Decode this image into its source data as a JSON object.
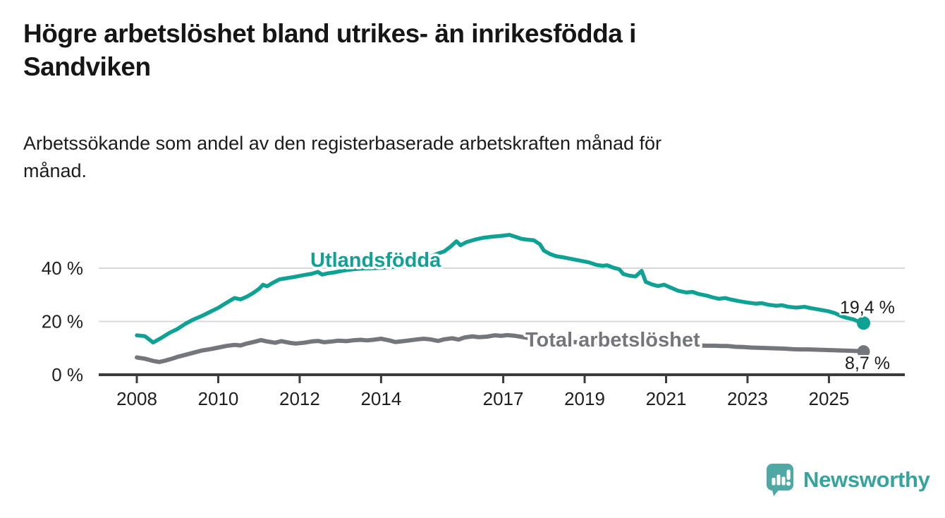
{
  "header": {
    "title_lines": [
      "Högre arbetslöshet bland utrikes- än inrikesfödda i",
      "Sandviken"
    ],
    "subtitle_lines": [
      "Arbetssökande som andel av den registerbaserade arbetskraften månad för",
      "månad."
    ]
  },
  "footer": {
    "brand": "Newsworthy"
  },
  "colors": {
    "series_foreign": "#0fa294",
    "series_total": "#75757c",
    "axis": "#3c3c3c",
    "gridline": "#d8d8d8",
    "text": "#1a1a1a",
    "logo_icon": "#4fa8a3",
    "logo_text": "#35a49d"
  },
  "chart_data": {
    "type": "line",
    "title": "Högre arbetslöshet bland utrikes- än inrikesfödda i Sandviken",
    "subtitle": "Arbetssökande som andel av den registerbaserade arbetskraften månad för månad.",
    "x_unit": "year",
    "y_unit": "percent",
    "xlim": [
      2007.9,
      2026.3
    ],
    "ylim": [
      0,
      55
    ],
    "grid": "horizontal",
    "gridlines": [
      20,
      40
    ],
    "legend_position": "inline-labels",
    "yticks": [
      {
        "value": 0,
        "label": "0 %"
      },
      {
        "value": 20,
        "label": "20 %"
      },
      {
        "value": 40,
        "label": "40 %"
      }
    ],
    "xticks": [
      {
        "value": 2008,
        "label": "2008"
      },
      {
        "value": 2010,
        "label": "2010"
      },
      {
        "value": 2012,
        "label": "2012"
      },
      {
        "value": 2014,
        "label": "2014"
      },
      {
        "value": 2017,
        "label": "2017"
      },
      {
        "value": 2019,
        "label": "2019"
      },
      {
        "value": 2021,
        "label": "2021"
      },
      {
        "value": 2023,
        "label": "2023"
      },
      {
        "value": 2025,
        "label": "2025"
      }
    ],
    "series": [
      {
        "name": "Utlandsfödda",
        "color": "#0fa294",
        "end_label": "19,4 %",
        "end_value": 19.4,
        "x": [
          2008.0,
          2008.2,
          2008.4,
          2008.6,
          2008.8,
          2009.0,
          2009.2,
          2009.4,
          2009.6,
          2009.8,
          2010.0,
          2010.2,
          2010.4,
          2010.55,
          2010.7,
          2010.85,
          2011.0,
          2011.1,
          2011.2,
          2011.35,
          2011.5,
          2011.7,
          2011.9,
          2012.1,
          2012.3,
          2012.45,
          2012.55,
          2012.7,
          2012.85,
          2013.0,
          2013.2,
          2013.4,
          2013.6,
          2013.8,
          2014.0,
          2014.2,
          2014.4,
          2014.6,
          2014.8,
          2015.0,
          2015.2,
          2015.4,
          2015.55,
          2015.7,
          2015.85,
          2015.95,
          2016.1,
          2016.3,
          2016.5,
          2016.7,
          2016.85,
          2017.0,
          2017.15,
          2017.3,
          2017.45,
          2017.6,
          2017.75,
          2017.9,
          2018.0,
          2018.15,
          2018.3,
          2018.5,
          2018.7,
          2018.9,
          2019.1,
          2019.3,
          2019.45,
          2019.55,
          2019.7,
          2019.85,
          2019.95,
          2020.1,
          2020.25,
          2020.4,
          2020.5,
          2020.65,
          2020.8,
          2020.95,
          2021.1,
          2021.3,
          2021.5,
          2021.65,
          2021.8,
          2022.0,
          2022.15,
          2022.3,
          2022.45,
          2022.6,
          2022.8,
          2023.0,
          2023.2,
          2023.35,
          2023.5,
          2023.7,
          2023.85,
          2024.0,
          2024.2,
          2024.4,
          2024.55,
          2024.7,
          2024.85,
          2025.0,
          2025.15,
          2025.3,
          2025.45,
          2025.6,
          2025.75,
          2025.85
        ],
        "values": [
          14.8,
          14.5,
          12.1,
          13.8,
          15.7,
          17.2,
          19.2,
          20.8,
          22.1,
          23.6,
          25.1,
          27.0,
          28.8,
          28.3,
          29.3,
          30.6,
          32.2,
          33.8,
          33.2,
          34.6,
          35.8,
          36.3,
          36.8,
          37.4,
          37.9,
          38.6,
          37.6,
          38.1,
          38.4,
          38.9,
          39.4,
          39.7,
          39.9,
          40.0,
          40.1,
          40.3,
          40.6,
          41.4,
          42.3,
          43.2,
          44.3,
          45.5,
          46.3,
          48.0,
          50.1,
          48.6,
          49.8,
          50.7,
          51.4,
          51.8,
          52.0,
          52.2,
          52.5,
          51.8,
          51.0,
          50.7,
          50.5,
          49.0,
          46.6,
          45.3,
          44.5,
          44.0,
          43.4,
          42.8,
          42.2,
          41.2,
          40.9,
          41.1,
          40.2,
          39.6,
          37.8,
          37.2,
          36.9,
          39.0,
          34.9,
          33.9,
          33.3,
          33.8,
          32.8,
          31.5,
          30.9,
          31.1,
          30.3,
          29.7,
          29.0,
          28.5,
          28.8,
          28.2,
          27.6,
          27.1,
          26.7,
          26.9,
          26.3,
          25.9,
          26.1,
          25.5,
          25.2,
          25.5,
          25.0,
          24.6,
          24.2,
          23.8,
          23.1,
          22.0,
          21.3,
          20.8,
          19.8,
          19.4
        ]
      },
      {
        "name": "Total arbetslöshet",
        "color": "#75757c",
        "end_label": "8,7 %",
        "end_value": 8.7,
        "x": [
          2008.0,
          2008.2,
          2008.4,
          2008.55,
          2008.7,
          2008.9,
          2009.0,
          2009.2,
          2009.4,
          2009.6,
          2009.8,
          2010.0,
          2010.2,
          2010.4,
          2010.55,
          2010.7,
          2010.9,
          2011.05,
          2011.2,
          2011.4,
          2011.55,
          2011.75,
          2011.9,
          2012.1,
          2012.3,
          2012.45,
          2012.6,
          2012.8,
          2012.95,
          2013.15,
          2013.3,
          2013.5,
          2013.65,
          2013.8,
          2014.0,
          2014.2,
          2014.35,
          2014.55,
          2014.7,
          2014.9,
          2015.05,
          2015.2,
          2015.4,
          2015.55,
          2015.75,
          2015.9,
          2016.05,
          2016.25,
          2016.4,
          2016.6,
          2016.8,
          2016.95,
          2017.1,
          2017.3,
          2017.5,
          2017.7,
          2017.9,
          2018.1,
          2018.3,
          2018.5,
          2018.7,
          2018.9,
          2019.1,
          2019.3,
          2019.5,
          2019.7,
          2019.9,
          2020.1,
          2020.3,
          2020.45,
          2020.6,
          2020.8,
          2021.0,
          2021.2,
          2021.4,
          2021.6,
          2021.8,
          2022.0,
          2022.2,
          2022.35,
          2022.5,
          2022.7,
          2022.9,
          2023.1,
          2023.3,
          2023.5,
          2023.7,
          2023.9,
          2024.1,
          2024.3,
          2024.5,
          2024.7,
          2024.9,
          2025.1,
          2025.3,
          2025.5,
          2025.7,
          2025.85
        ],
        "values": [
          6.5,
          6.0,
          5.2,
          4.8,
          5.3,
          6.2,
          6.7,
          7.5,
          8.3,
          9.1,
          9.6,
          10.2,
          10.8,
          11.2,
          11.0,
          11.7,
          12.4,
          13.0,
          12.5,
          12.0,
          12.6,
          12.0,
          11.7,
          12.0,
          12.5,
          12.7,
          12.2,
          12.5,
          12.8,
          12.6,
          12.9,
          13.1,
          12.9,
          13.1,
          13.5,
          12.9,
          12.3,
          12.6,
          12.9,
          13.3,
          13.5,
          13.3,
          12.7,
          13.3,
          13.7,
          13.2,
          14.0,
          14.4,
          14.1,
          14.3,
          14.8,
          14.6,
          14.9,
          14.6,
          14.1,
          13.6,
          13.2,
          12.9,
          12.7,
          12.5,
          12.3,
          12.1,
          11.9,
          11.8,
          11.6,
          11.4,
          11.3,
          11.5,
          12.0,
          12.3,
          12.0,
          11.7,
          11.5,
          11.3,
          11.2,
          11.1,
          11.0,
          10.9,
          10.9,
          10.8,
          10.8,
          10.5,
          10.4,
          10.2,
          10.1,
          10.0,
          9.9,
          9.8,
          9.6,
          9.5,
          9.5,
          9.4,
          9.3,
          9.2,
          9.1,
          9.0,
          8.9,
          8.7
        ]
      }
    ]
  }
}
